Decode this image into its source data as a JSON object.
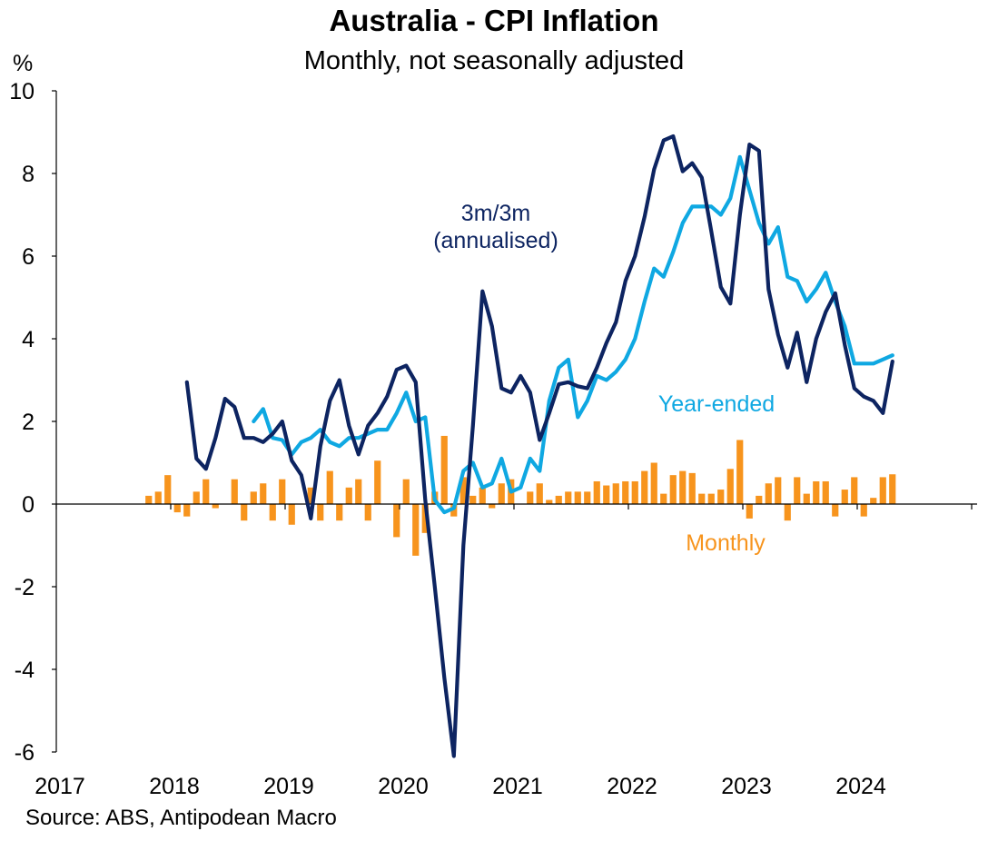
{
  "title": "Australia - CPI Inflation",
  "subtitle": "Monthly, not seasonally adjusted",
  "source": "Source: ABS, Antipodean Macro",
  "chart_data": {
    "type": "bar+line",
    "y_unit_label": "%",
    "ylim": [
      -6,
      10
    ],
    "y_ticks": [
      "-6",
      "-4",
      "-2",
      "0",
      "2",
      "4",
      "6",
      "8",
      "10"
    ],
    "xlim": [
      "2017-01",
      "2024-12"
    ],
    "x_ticks": [
      "2017",
      "2018",
      "2019",
      "2020",
      "2021",
      "2022",
      "2023",
      "2024"
    ],
    "grid": false,
    "colors": {
      "three_m": "#0d2461",
      "year_ended": "#0fa8e2",
      "monthly": "#f7941d"
    },
    "annotations": {
      "three_m": "3m/3m\n(annualised)",
      "year_ended": "Year-ended",
      "monthly": "Monthly"
    },
    "series": [
      {
        "name": "Monthly",
        "kind": "bar",
        "start": "2017-10",
        "values": [
          0.2,
          0.3,
          0.7,
          -0.2,
          -0.3,
          0.3,
          0.6,
          -0.1,
          0.0,
          0.6,
          -0.4,
          0.3,
          0.5,
          -0.4,
          0.6,
          -0.5,
          0.0,
          0.4,
          -0.4,
          0.8,
          -0.4,
          0.4,
          0.6,
          -0.4,
          1.05,
          0.0,
          -0.8,
          0.6,
          -1.25,
          -0.7,
          0.3,
          1.65,
          -0.3,
          0.65,
          0.2,
          0.4,
          -0.1,
          0.5,
          0.6,
          0.0,
          0.3,
          0.5,
          0.1,
          0.2,
          0.3,
          0.3,
          0.3,
          0.55,
          0.45,
          0.5,
          0.55,
          0.55,
          0.8,
          1.0,
          0.25,
          0.7,
          0.8,
          0.75,
          0.25,
          0.25,
          0.35,
          0.85,
          1.55,
          -0.35,
          0.2,
          0.5,
          0.65,
          -0.4,
          0.65,
          0.25,
          0.55,
          0.55,
          -0.3,
          0.35,
          0.65,
          -0.3,
          0.15,
          0.65,
          0.72
        ]
      },
      {
        "name": "Year-ended",
        "kind": "line",
        "start": "2018-09",
        "values": [
          2.0,
          2.3,
          1.6,
          1.55,
          1.2,
          1.5,
          1.6,
          1.8,
          1.5,
          1.4,
          1.6,
          1.6,
          1.7,
          1.8,
          1.8,
          2.2,
          2.7,
          2.0,
          2.1,
          0.1,
          -0.2,
          -0.1,
          0.8,
          1.0,
          0.4,
          0.5,
          1.1,
          0.3,
          0.4,
          1.1,
          0.8,
          2.5,
          3.3,
          3.5,
          2.1,
          2.5,
          3.1,
          3.0,
          3.2,
          3.5,
          4.0,
          4.9,
          5.7,
          5.5,
          6.1,
          6.8,
          7.2,
          7.2,
          7.2,
          7.0,
          7.4,
          8.4,
          7.6,
          6.8,
          6.3,
          6.7,
          5.5,
          5.4,
          4.9,
          5.2,
          5.6,
          4.9,
          4.3,
          3.4,
          3.4,
          3.4,
          3.5,
          3.6
        ]
      },
      {
        "name": "3m/3m (annualised)",
        "kind": "line",
        "start": "2018-02",
        "values": [
          2.95,
          1.1,
          0.85,
          1.6,
          2.55,
          2.35,
          1.6,
          1.6,
          1.5,
          1.7,
          2.0,
          1.05,
          0.7,
          -0.35,
          1.4,
          2.5,
          3.0,
          1.9,
          1.2,
          1.9,
          2.2,
          2.6,
          3.25,
          3.35,
          2.95,
          0.1,
          -2.0,
          -4.2,
          -6.1,
          -1.0,
          1.9,
          5.15,
          4.3,
          2.8,
          2.7,
          3.1,
          2.7,
          1.55,
          2.2,
          2.9,
          2.95,
          2.85,
          2.8,
          3.3,
          3.9,
          4.4,
          5.4,
          6.0,
          6.95,
          8.1,
          8.8,
          8.9,
          8.05,
          8.25,
          7.9,
          6.6,
          5.25,
          4.85,
          7.0,
          8.7,
          8.55,
          5.2,
          4.1,
          3.3,
          4.15,
          2.95,
          4.0,
          4.65,
          5.1,
          3.85,
          2.8,
          2.6,
          2.5,
          2.2,
          3.45
        ]
      }
    ]
  }
}
